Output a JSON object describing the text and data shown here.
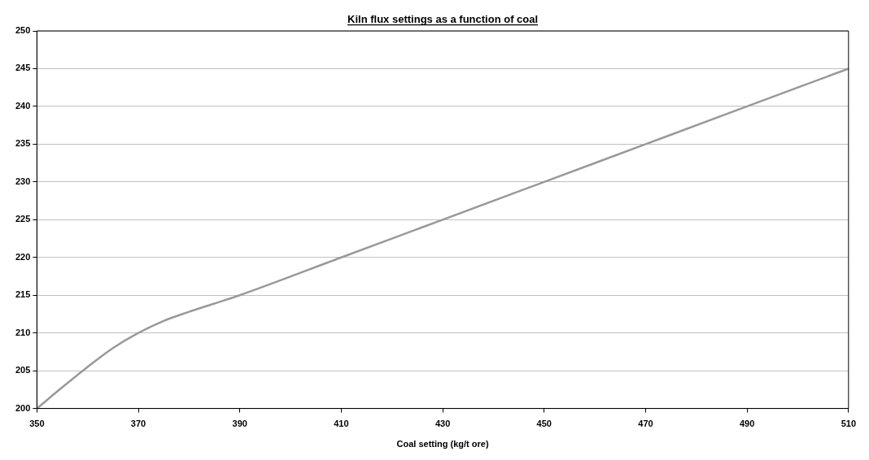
{
  "chart_data": {
    "type": "line",
    "title": "Kiln flux settings as a function of coal",
    "xlabel": "Coal setting (kg/t ore)",
    "x": [
      350,
      355,
      360,
      365,
      370,
      375,
      380,
      385,
      390,
      410,
      430,
      450,
      470,
      490,
      510
    ],
    "series": [
      {
        "color": "#999999",
        "values": [
          200,
          202.8,
          205.5,
          208,
          210,
          211.6,
          212.8,
          213.9,
          215,
          220,
          225,
          230,
          235,
          240,
          245
        ]
      }
    ],
    "xlim": [
      350,
      510
    ],
    "xticks": [
      350,
      370,
      390,
      410,
      430,
      450,
      470,
      490,
      510
    ],
    "ylim": [
      200,
      250
    ],
    "yticks": [
      200,
      205,
      210,
      215,
      220,
      225,
      230,
      235,
      240,
      245,
      250
    ],
    "grid": "y",
    "legend": false,
    "marker": "none",
    "line_style": "solid"
  }
}
